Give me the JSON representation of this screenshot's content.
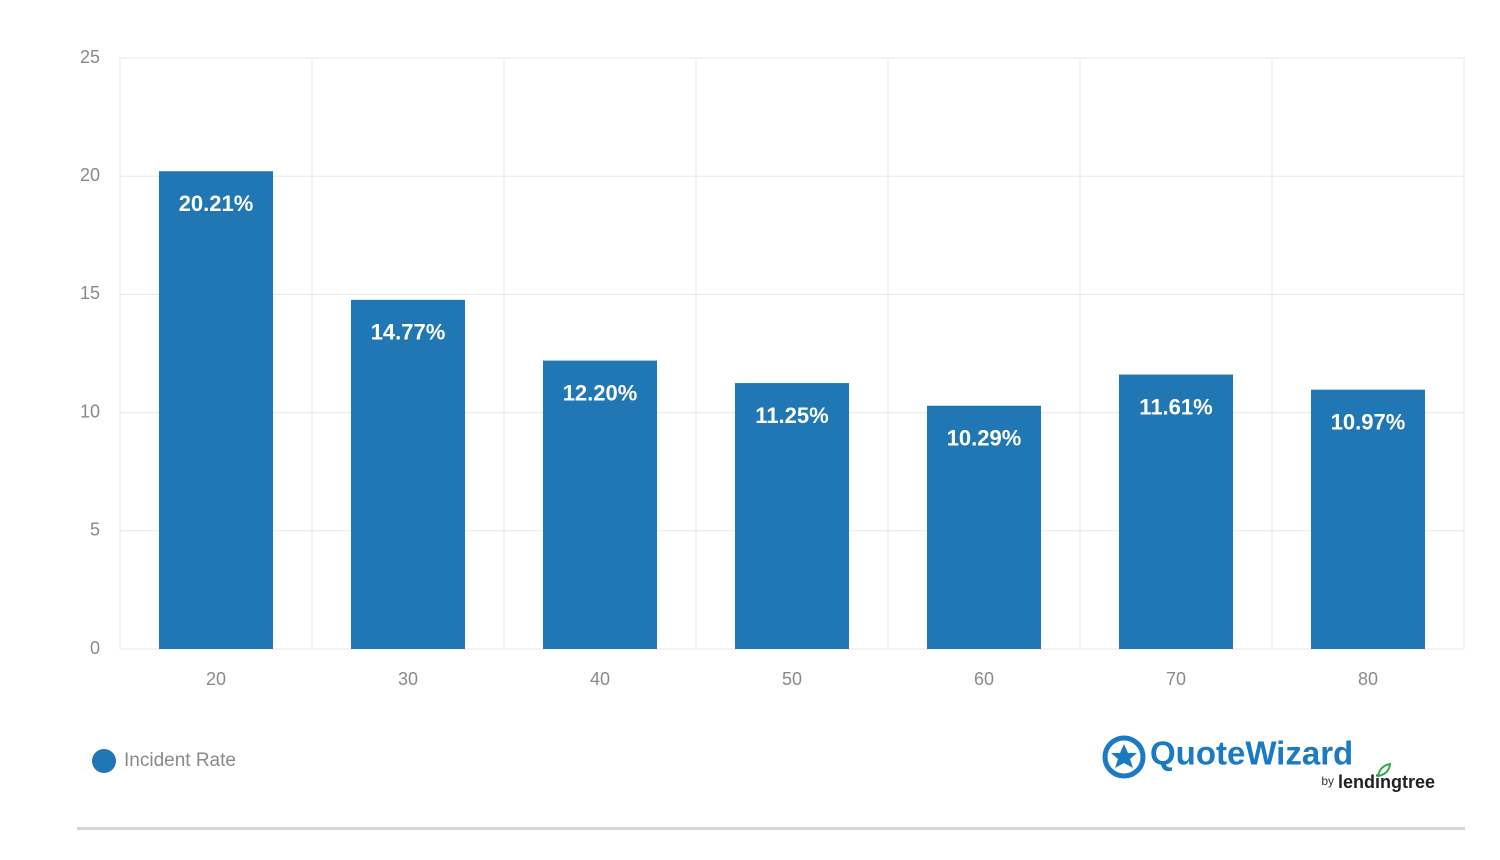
{
  "chart_data": {
    "type": "bar",
    "categories": [
      "20",
      "30",
      "40",
      "50",
      "60",
      "70",
      "80"
    ],
    "series": [
      {
        "name": "Incident Rate",
        "color": "#2077b4",
        "values": [
          20.21,
          14.77,
          12.2,
          11.25,
          10.29,
          11.61,
          10.97
        ],
        "value_labels": [
          "20.21%",
          "14.77%",
          "12.20%",
          "11.25%",
          "10.29%",
          "11.61%",
          "10.97%"
        ]
      }
    ],
    "ylim": [
      0,
      25
    ],
    "yticks": [
      0,
      5,
      10,
      15,
      20,
      25
    ],
    "grid": true,
    "legend": "bottom-left"
  },
  "logo": {
    "name": "QuoteWizard",
    "by": "by",
    "brand": "lendingtree"
  }
}
